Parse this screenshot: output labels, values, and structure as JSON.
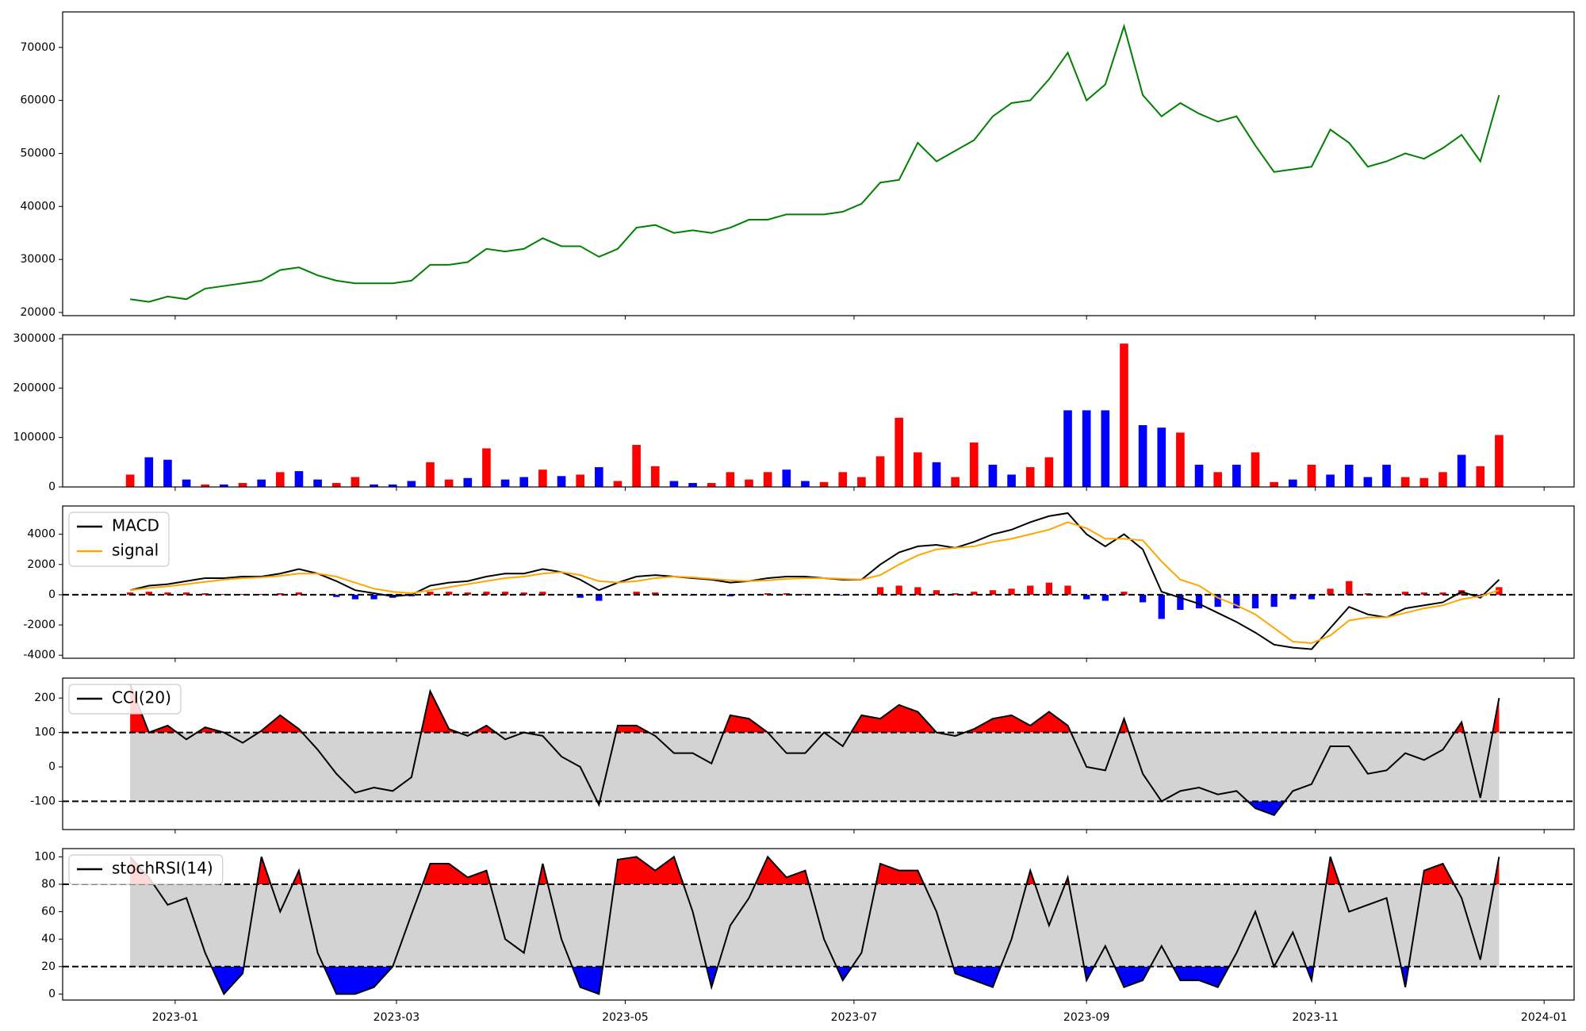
{
  "chart_data": [
    {
      "type": "line",
      "color": "green",
      "values": [
        22500,
        22000,
        23000,
        22500,
        24500,
        25000,
        25500,
        26000,
        28000,
        28500,
        27000,
        26000,
        25500,
        25500,
        25500,
        26000,
        29000,
        29000,
        29500,
        32000,
        31500,
        32000,
        34000,
        32500,
        32500,
        30500,
        32000,
        36000,
        36500,
        35000,
        35500,
        35000,
        36000,
        37500,
        37500,
        38500,
        38500,
        38500,
        39000,
        40500,
        44500,
        45000,
        52000,
        48500,
        50500,
        52500,
        57000,
        59500,
        60000,
        64000,
        69000,
        60000,
        63000,
        74000,
        61000,
        57000,
        59500,
        57500,
        56000,
        57000,
        51500,
        46500,
        47000,
        47500,
        54500,
        52000,
        47500,
        48500,
        50000,
        49000,
        51000,
        53500,
        48500,
        61000
      ],
      "ylim": [
        19400,
        76700
      ],
      "yticks": [
        20000,
        30000,
        40000,
        50000,
        60000,
        70000
      ]
    },
    {
      "type": "bar",
      "values": [
        25000,
        60000,
        55000,
        15000,
        5000,
        5000,
        8000,
        15000,
        30000,
        32000,
        15000,
        8000,
        20000,
        5000,
        5000,
        12000,
        50000,
        15000,
        18000,
        78000,
        15000,
        20000,
        35000,
        22000,
        25000,
        40000,
        12000,
        85000,
        42000,
        12000,
        8000,
        8000,
        30000,
        15000,
        30000,
        35000,
        12000,
        10000,
        30000,
        20000,
        62000,
        140000,
        70000,
        50000,
        20000,
        90000,
        45000,
        25000,
        40000,
        60000,
        155000,
        155000,
        155000,
        290000,
        125000,
        120000,
        110000,
        45000,
        30000,
        45000,
        70000,
        10000,
        15000,
        45000,
        25000,
        45000,
        20000,
        45000,
        20000,
        18000,
        30000,
        65000,
        42000,
        105000
      ],
      "colors": [
        "red",
        "blue",
        "blue",
        "blue",
        "red",
        "blue",
        "red",
        "blue",
        "red",
        "blue",
        "blue",
        "red",
        "red",
        "blue",
        "blue",
        "blue",
        "red",
        "red",
        "blue",
        "red",
        "blue",
        "blue",
        "red",
        "blue",
        "red",
        "blue",
        "red",
        "red",
        "red",
        "blue",
        "blue",
        "red",
        "red",
        "red",
        "red",
        "blue",
        "blue",
        "red",
        "red",
        "red",
        "red",
        "red",
        "red",
        "blue",
        "red",
        "red",
        "blue",
        "blue",
        "red",
        "red",
        "blue",
        "blue",
        "blue",
        "red",
        "blue",
        "blue",
        "red",
        "blue",
        "red",
        "blue",
        "red",
        "red",
        "blue",
        "red",
        "blue",
        "blue",
        "blue",
        "blue",
        "red",
        "red",
        "red",
        "blue",
        "red",
        "red"
      ],
      "ylim": [
        0,
        308000
      ],
      "yticks": [
        0,
        100000,
        200000,
        300000
      ]
    },
    {
      "type": "macd",
      "series": [
        {
          "name": "MACD",
          "color": "black",
          "values": [
            300,
            600,
            700,
            900,
            1100,
            1100,
            1200,
            1200,
            1400,
            1700,
            1400,
            900,
            300,
            100,
            -100,
            0,
            600,
            800,
            900,
            1200,
            1400,
            1400,
            1700,
            1500,
            1000,
            300,
            800,
            1200,
            1300,
            1200,
            1100,
            1000,
            800,
            900,
            1100,
            1200,
            1200,
            1100,
            1000,
            1000,
            2000,
            2800,
            3200,
            3300,
            3100,
            3500,
            4000,
            4300,
            4800,
            5200,
            5400,
            4000,
            3200,
            4000,
            3000,
            200,
            -200,
            -600,
            -1200,
            -1800,
            -2500,
            -3300,
            -3500,
            -3600,
            -2200,
            -800,
            -1300,
            -1500,
            -900,
            -700,
            -500,
            200,
            -200,
            1000
          ]
        },
        {
          "name": "signal",
          "color": "orange",
          "values": [
            300,
            450,
            550,
            700,
            850,
            1000,
            1100,
            1150,
            1250,
            1400,
            1400,
            1200,
            800,
            400,
            200,
            100,
            300,
            500,
            700,
            900,
            1100,
            1200,
            1400,
            1500,
            1300,
            900,
            800,
            900,
            1100,
            1200,
            1150,
            1050,
            950,
            900,
            950,
            1050,
            1100,
            1100,
            1050,
            1000,
            1300,
            2000,
            2600,
            3000,
            3100,
            3200,
            3500,
            3700,
            4000,
            4300,
            4800,
            4400,
            3700,
            3700,
            3600,
            2200,
            1000,
            600,
            -200,
            -700,
            -1300,
            -2200,
            -3100,
            -3200,
            -2700,
            -1700,
            -1500,
            -1500,
            -1200,
            -900,
            -700,
            -300,
            -100,
            300
          ]
        }
      ],
      "histogram": {
        "up_color": "red",
        "down_color": "blue",
        "values": [
          150,
          200,
          150,
          150,
          100,
          50,
          50,
          50,
          100,
          150,
          0,
          -150,
          -300,
          -300,
          -200,
          -100,
          200,
          200,
          150,
          200,
          200,
          150,
          200,
          0,
          -200,
          -400,
          0,
          200,
          150,
          0,
          -50,
          -50,
          -100,
          0,
          100,
          100,
          50,
          0,
          -50,
          0,
          500,
          600,
          500,
          300,
          100,
          200,
          300,
          400,
          600,
          800,
          600,
          -300,
          -400,
          200,
          -500,
          -1600,
          -1000,
          -900,
          -800,
          -900,
          -900,
          -800,
          -300,
          -300,
          400,
          900,
          100,
          0,
          200,
          150,
          150,
          300,
          -100,
          500
        ]
      },
      "hlines": [
        0
      ],
      "legend": "upper left",
      "ylim": [
        -4200,
        5870
      ],
      "yticks": [
        -4000,
        -2000,
        0,
        2000,
        4000
      ]
    },
    {
      "type": "band",
      "series": [
        {
          "name": "CCI(20)",
          "color": "black",
          "values": [
            240,
            100,
            120,
            80,
            115,
            100,
            70,
            105,
            150,
            110,
            50,
            -20,
            -75,
            -60,
            -70,
            -30,
            220,
            110,
            90,
            120,
            80,
            100,
            90,
            30,
            0,
            -110,
            120,
            120,
            90,
            40,
            40,
            10,
            150,
            140,
            100,
            40,
            40,
            100,
            60,
            150,
            140,
            180,
            160,
            100,
            90,
            110,
            140,
            150,
            120,
            160,
            120,
            0,
            -10,
            140,
            -20,
            -100,
            -70,
            -60,
            -80,
            -70,
            -120,
            -140,
            -70,
            -50,
            60,
            60,
            -20,
            -10,
            40,
            20,
            50,
            130,
            -90,
            200
          ]
        }
      ],
      "hlines": [
        100,
        -100
      ],
      "above_color": "red",
      "below_color": "blue",
      "band_color": "lightgray",
      "legend": "upper left",
      "ylim": [
        -182,
        258
      ],
      "yticks": [
        -100,
        0,
        100,
        200
      ]
    },
    {
      "type": "band",
      "series": [
        {
          "name": "stochRSI(14)",
          "color": "black",
          "values": [
            100,
            85,
            65,
            70,
            30,
            0,
            15,
            100,
            60,
            90,
            30,
            0,
            0,
            5,
            20,
            58,
            95,
            95,
            85,
            90,
            40,
            30,
            95,
            40,
            5,
            0,
            98,
            100,
            90,
            100,
            60,
            5,
            50,
            70,
            100,
            85,
            90,
            40,
            10,
            30,
            95,
            90,
            90,
            60,
            15,
            10,
            5,
            40,
            90,
            50,
            85,
            10,
            35,
            5,
            10,
            35,
            10,
            10,
            5,
            30,
            60,
            20,
            45,
            10,
            100,
            60,
            65,
            70,
            5,
            90,
            95,
            70,
            25,
            100
          ]
        }
      ],
      "hlines": [
        80,
        20
      ],
      "above_color": "red",
      "below_color": "blue",
      "band_color": "lightgray",
      "legend": "upper left",
      "ylim": [
        -4.4,
        106
      ],
      "yticks": [
        0,
        20,
        40,
        60,
        80,
        100
      ],
      "x": [
        -12,
        -7,
        -2,
        3,
        8,
        13,
        18,
        23,
        28,
        33,
        38,
        43,
        48,
        53,
        58,
        63,
        68,
        73,
        78,
        83,
        88,
        93,
        98,
        103,
        108,
        113,
        118,
        123,
        128,
        133,
        138,
        143,
        148,
        153,
        158,
        163,
        168,
        173,
        178,
        183,
        188,
        193,
        198,
        203,
        208,
        213,
        218,
        223,
        228,
        233,
        238,
        243,
        248,
        253,
        258,
        263,
        268,
        273,
        278,
        283,
        288,
        293,
        298,
        303,
        308,
        313,
        318,
        323,
        328,
        333,
        338,
        343,
        348,
        353
      ],
      "xlim": [
        -30,
        373
      ],
      "xticks": [
        {
          "value": 0,
          "label": "2023-01"
        },
        {
          "value": 59,
          "label": "2023-03"
        },
        {
          "value": 120,
          "label": "2023-05"
        },
        {
          "value": 181,
          "label": "2023-07"
        },
        {
          "value": 243,
          "label": "2023-09"
        },
        {
          "value": 304,
          "label": "2023-11"
        },
        {
          "value": 365,
          "label": "2024-01"
        }
      ]
    }
  ]
}
